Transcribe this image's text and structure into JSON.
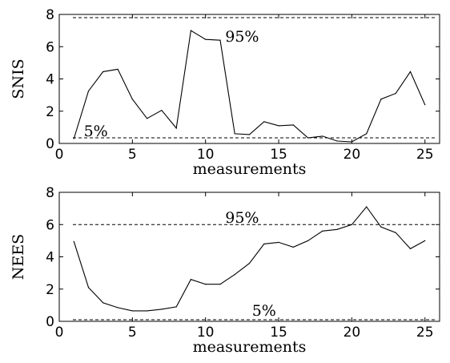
{
  "chart_data": [
    {
      "type": "line",
      "xlabel": "measurements",
      "ylabel": "SNIS",
      "xlim": [
        0,
        26
      ],
      "ylim": [
        0,
        8
      ],
      "xticks": [
        0,
        5,
        10,
        15,
        20,
        25
      ],
      "yticks": [
        0,
        2,
        4,
        6,
        8
      ],
      "grid": false,
      "x": [
        1,
        2,
        3,
        4,
        5,
        6,
        7,
        8,
        9,
        10,
        11,
        12,
        13,
        14,
        15,
        16,
        17,
        18,
        19,
        20,
        21,
        22,
        23,
        24,
        25
      ],
      "series": [
        {
          "values": [
            0.3,
            3.25,
            4.45,
            4.6,
            2.75,
            1.55,
            2.05,
            0.95,
            7.0,
            6.45,
            6.4,
            0.6,
            0.55,
            1.35,
            1.1,
            1.15,
            0.35,
            0.45,
            0.15,
            0.1,
            0.6,
            2.75,
            3.1,
            4.45,
            2.4
          ],
          "color": "#000000"
        }
      ],
      "reference_lines": [
        {
          "y": 7.8,
          "label": "95%",
          "label_x": 12.5,
          "label_y": 6.6
        },
        {
          "y": 0.35,
          "label": "5%",
          "label_x": 2.5,
          "label_y": 0.75
        }
      ]
    },
    {
      "type": "line",
      "xlabel": "measurements",
      "ylabel": "NEES",
      "xlim": [
        0,
        26
      ],
      "ylim": [
        0,
        8
      ],
      "xticks": [
        0,
        5,
        10,
        15,
        20,
        25
      ],
      "yticks": [
        0,
        2,
        4,
        6,
        8
      ],
      "grid": false,
      "x": [
        1,
        2,
        3,
        4,
        5,
        6,
        7,
        8,
        9,
        10,
        11,
        12,
        13,
        14,
        15,
        16,
        17,
        18,
        19,
        20,
        21,
        22,
        23,
        24,
        25
      ],
      "series": [
        {
          "values": [
            4.95,
            2.1,
            1.15,
            0.85,
            0.65,
            0.65,
            0.75,
            0.9,
            2.6,
            2.3,
            2.3,
            2.9,
            3.6,
            4.8,
            4.9,
            4.6,
            5.0,
            5.6,
            5.7,
            6.0,
            7.1,
            5.85,
            5.5,
            4.5,
            5.0
          ],
          "color": "#000000"
        }
      ],
      "reference_lines": [
        {
          "y": 6.0,
          "label": "95%",
          "label_x": 12.5,
          "label_y": 6.4
        },
        {
          "y": 0.1,
          "label": "5%",
          "label_x": 14,
          "label_y": 0.65
        }
      ]
    }
  ]
}
